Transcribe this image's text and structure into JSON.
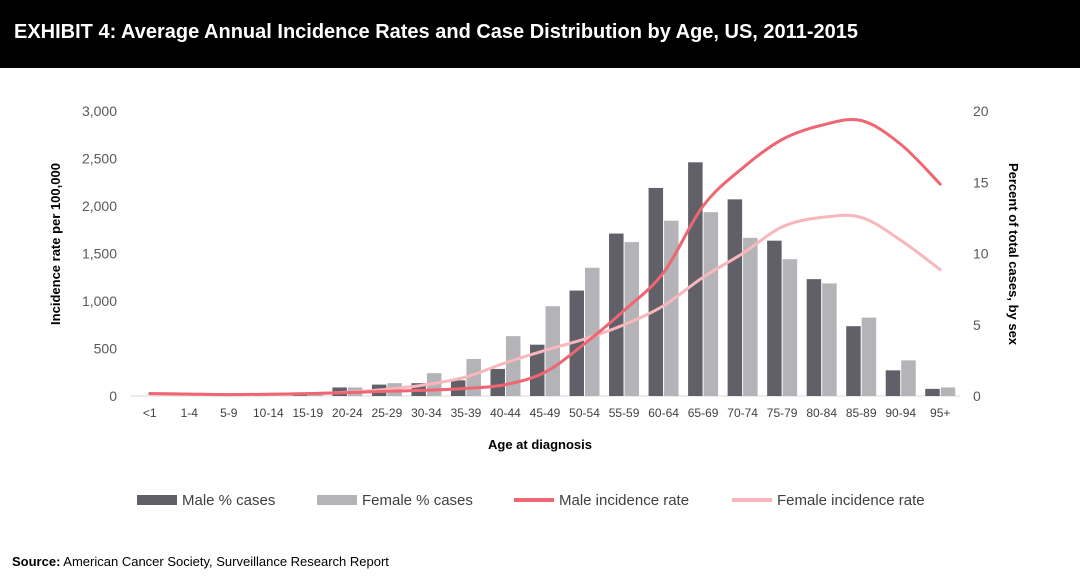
{
  "header": {
    "title": "EXHIBIT 4: Average Annual Incidence Rates and Case Distribution by Age, US, 2011-2015"
  },
  "source": {
    "label": "Source:",
    "text": " American Cancer Society, Surveillance Research Report"
  },
  "colors": {
    "male_bar": "#616069",
    "female_bar": "#b4b3b8",
    "male_line": "#ef6672",
    "female_line": "#f7b7bd",
    "axis_text": "#595959"
  },
  "chart_data": {
    "type": "bar+line",
    "xlabel": "Age at diagnosis",
    "ylabel_left": "Incidence rate per 100,000",
    "ylabel_right": "Percent of total cases, by sex",
    "ylim_left": [
      0,
      3000
    ],
    "ylim_right": [
      0,
      20
    ],
    "yticks_left": [
      "0",
      "500",
      "1,000",
      "1,500",
      "2,000",
      "2,500",
      "3,000"
    ],
    "yticks_right": [
      "0",
      "5",
      "10",
      "15",
      "20"
    ],
    "categories": [
      "<1",
      "1-4",
      "5-9",
      "10-14",
      "15-19",
      "20-24",
      "25-29",
      "30-34",
      "35-39",
      "40-44",
      "45-49",
      "50-54",
      "55-59",
      "60-64",
      "65-69",
      "70-74",
      "75-79",
      "80-84",
      "85-89",
      "90-94",
      "95+"
    ],
    "series": [
      {
        "name": "Male % cases",
        "kind": "bar",
        "axis": "right",
        "values": [
          0.0,
          0.0,
          0.0,
          0.0,
          0.1,
          0.6,
          0.8,
          0.9,
          1.1,
          1.9,
          3.6,
          7.4,
          11.4,
          14.6,
          16.4,
          13.8,
          10.9,
          8.2,
          4.9,
          1.8,
          0.5
        ]
      },
      {
        "name": "Female % cases",
        "kind": "bar",
        "axis": "right",
        "values": [
          0.0,
          0.0,
          0.0,
          0.0,
          0.2,
          0.6,
          0.9,
          1.6,
          2.6,
          4.2,
          6.3,
          9.0,
          10.8,
          12.3,
          12.9,
          11.1,
          9.6,
          7.9,
          5.5,
          2.5,
          0.6
        ]
      },
      {
        "name": "Male incidence rate",
        "kind": "line",
        "axis": "left",
        "values": [
          25,
          20,
          15,
          18,
          25,
          35,
          50,
          60,
          80,
          120,
          250,
          550,
          900,
          1300,
          2000,
          2400,
          2700,
          2850,
          2900,
          2650,
          2230
        ]
      },
      {
        "name": "Female incidence rate",
        "kind": "line",
        "axis": "left",
        "values": [
          25,
          20,
          15,
          18,
          25,
          40,
          70,
          120,
          200,
          350,
          480,
          600,
          750,
          950,
          1250,
          1500,
          1780,
          1880,
          1880,
          1640,
          1330
        ]
      }
    ],
    "legend": [
      "Male % cases",
      "Female % cases",
      "Male incidence rate",
      "Female incidence rate"
    ],
    "legend_position": "bottom"
  }
}
